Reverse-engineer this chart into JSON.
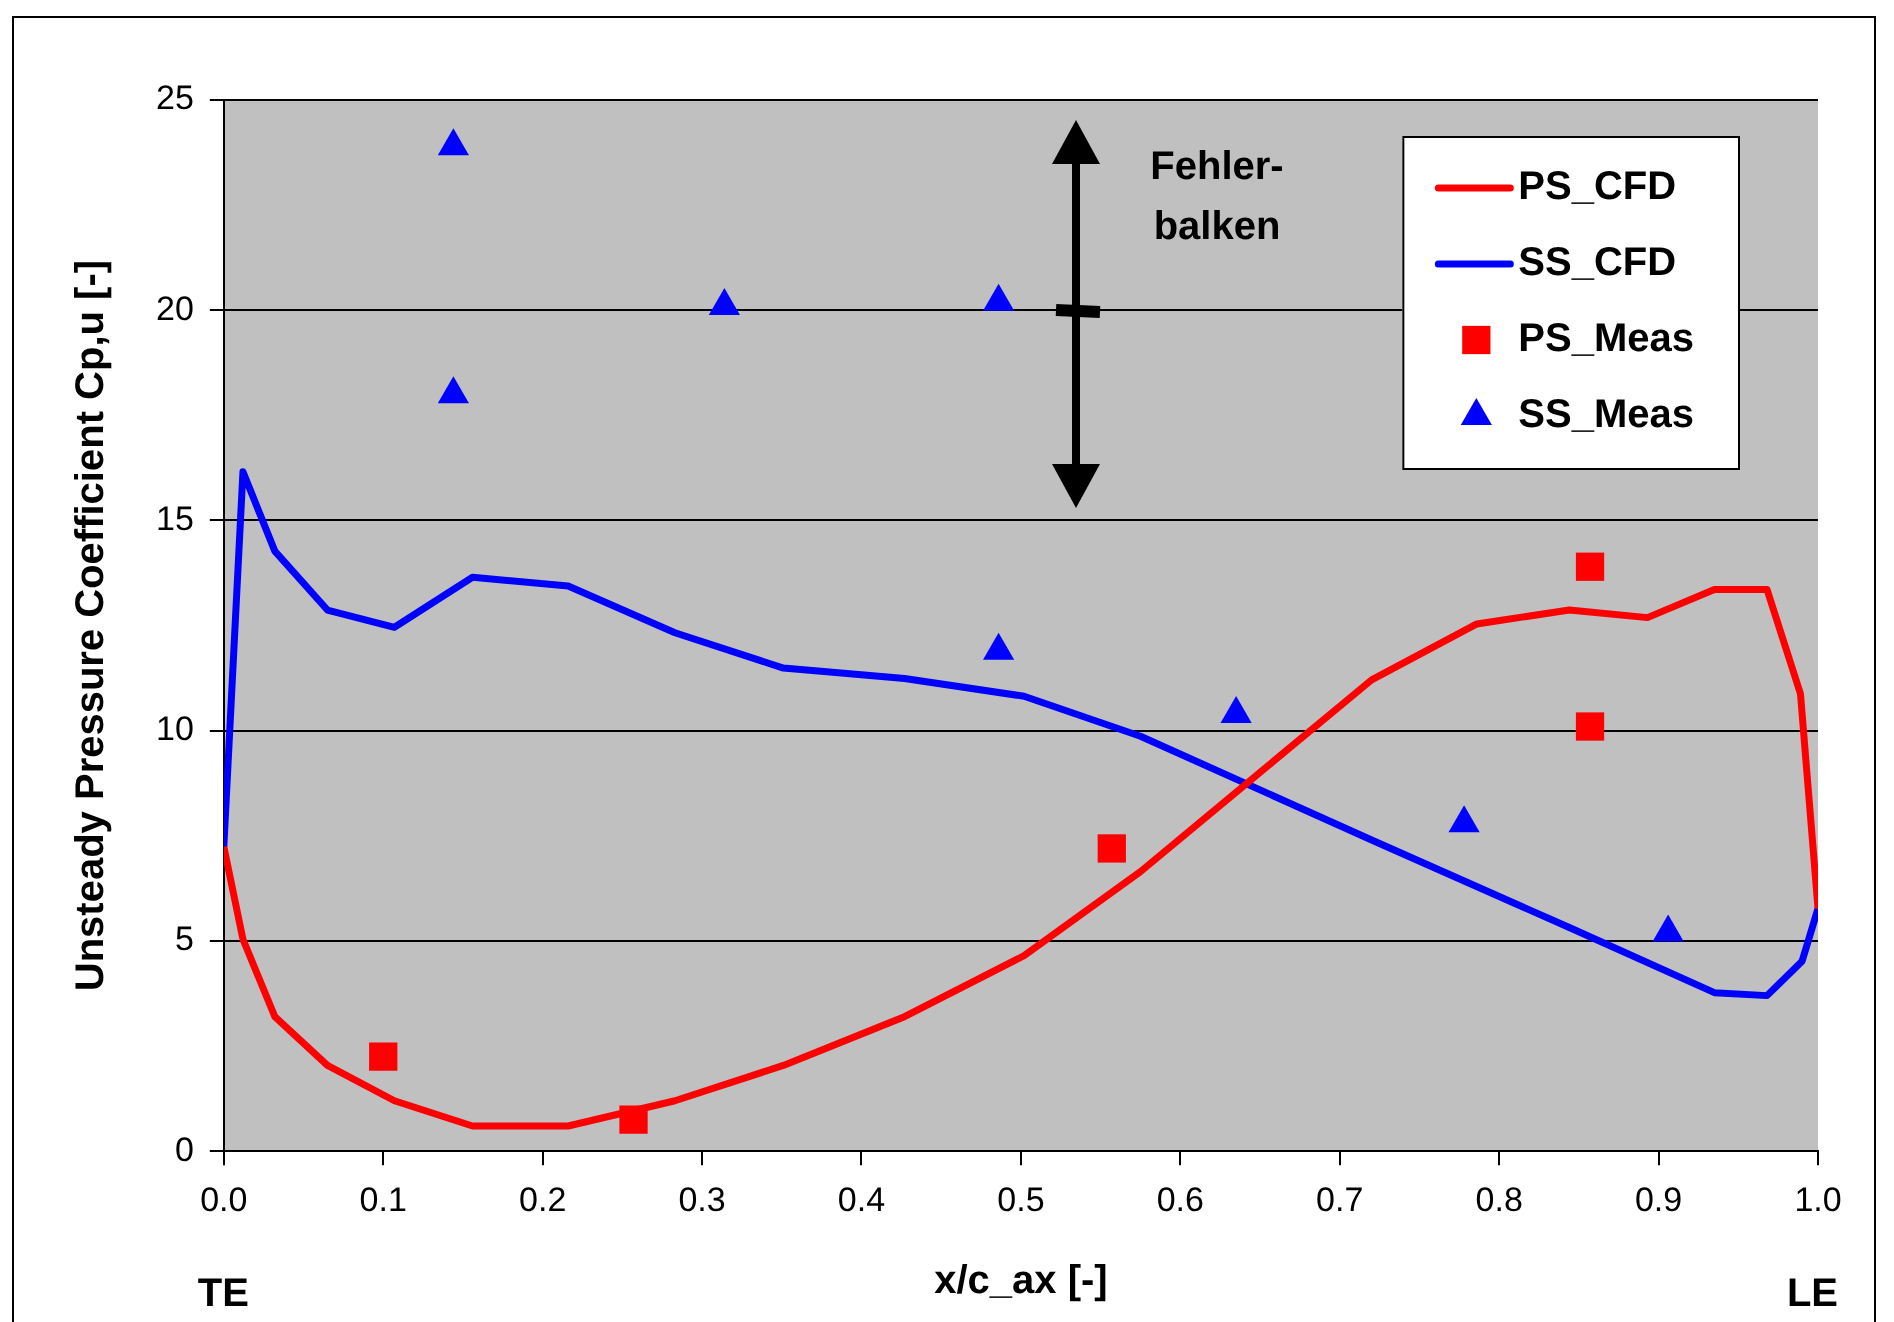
{
  "chart_data": {
    "type": "line",
    "xlabel": "x/c_ax [-]",
    "ylabel": "Unsteady Pressure Coefficient Cp,u [-]",
    "annotations": [
      "Fehler-\nbalken",
      "TE",
      "LE"
    ],
    "xlim": [
      0,
      1
    ],
    "xticks": [
      {
        "value": 0,
        "label": "0.0"
      },
      {
        "value": 0.1,
        "label": "0.1"
      },
      {
        "value": 0.2,
        "label": "0.2"
      },
      {
        "value": 0.3,
        "label": "0.3"
      },
      {
        "value": 0.4,
        "label": "0.4"
      },
      {
        "value": 0.5,
        "label": "0.5"
      },
      {
        "value": 0.6,
        "label": "0.6"
      },
      {
        "value": 0.7,
        "label": "0.7"
      },
      {
        "value": 0.8,
        "label": "0.8"
      },
      {
        "value": 0.9,
        "label": "0.9"
      },
      {
        "value": 1,
        "label": "1.0"
      }
    ],
    "ylim": [
      0,
      25
    ],
    "yticks": [
      0,
      5,
      10,
      15,
      20,
      25
    ],
    "grid": "y",
    "legend": "top right",
    "series": [
      {
        "name": "PS_CFD",
        "type": "line",
        "color": "#ff0000",
        "marker": "none",
        "x": [
          0,
          0.012,
          0.032,
          0.065,
          0.107,
          0.156,
          0.216,
          0.283,
          0.351,
          0.427,
          0.502,
          0.575,
          0.72,
          0.786,
          0.844,
          0.893,
          0.935,
          0.968,
          0.989,
          1
        ],
        "values": [
          7.24,
          5.04,
          3.2,
          2.04,
          1.2,
          0.6,
          0.6,
          1.2,
          2.04,
          3.2,
          4.65,
          6.65,
          11.21,
          12.54,
          12.87,
          12.69,
          13.36,
          13.36,
          10.88,
          5.77
        ]
      },
      {
        "name": "SS_CFD",
        "type": "line",
        "color": "#0000ff",
        "marker": "none",
        "x": [
          0,
          0.012,
          0.032,
          0.065,
          0.107,
          0.156,
          0.216,
          0.283,
          0.351,
          0.427,
          0.502,
          0.575,
          0.72,
          0.844,
          0.935,
          0.968,
          0.99,
          1
        ],
        "values": [
          7.24,
          16.16,
          14.27,
          12.87,
          12.46,
          13.65,
          13.44,
          12.33,
          11.49,
          11.24,
          10.82,
          9.87,
          7.4,
          5.32,
          3.77,
          3.7,
          4.52,
          5.77
        ]
      },
      {
        "name": "PS_Meas",
        "type": "scatter",
        "color": "#ff0000",
        "marker": "square",
        "x": [
          0.1,
          0.257,
          0.557,
          0.857,
          0.857
        ],
        "values": [
          2.25,
          0.75,
          7.2,
          13.9,
          10.1
        ]
      },
      {
        "name": "SS_Meas",
        "type": "scatter",
        "color": "#0000ff",
        "marker": "triangle",
        "x": [
          0.144,
          0.144,
          0.314,
          0.486,
          0.486,
          0.635,
          0.778,
          0.906
        ],
        "values": [
          23.9,
          18.0,
          20.1,
          20.2,
          11.9,
          10.4,
          7.8,
          5.2
        ]
      }
    ]
  }
}
